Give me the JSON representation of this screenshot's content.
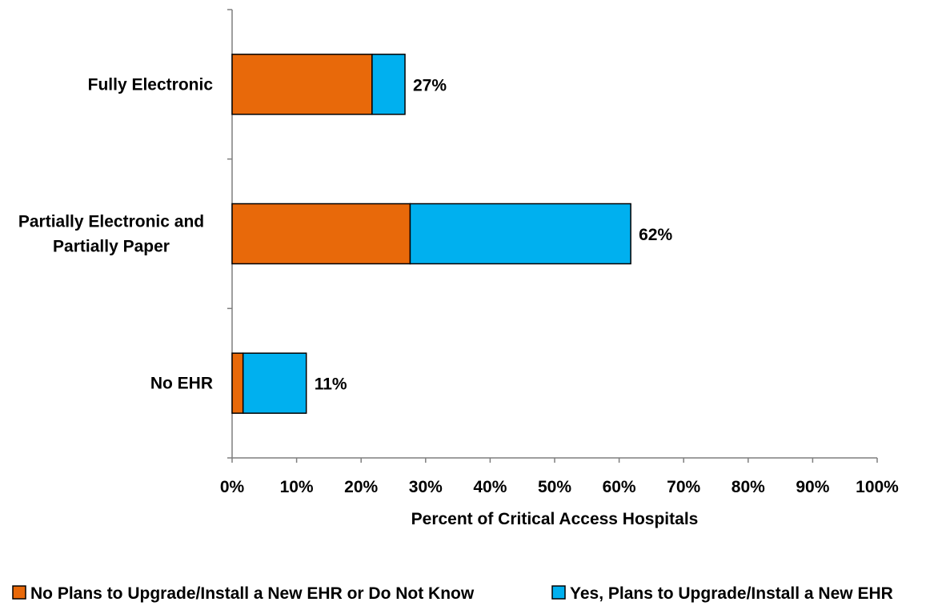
{
  "chart_data": {
    "type": "bar",
    "orientation": "horizontal",
    "stacked": true,
    "categories": [
      [
        "Fully Electronic"
      ],
      [
        "Partially Electronic and",
        "Partially Paper"
      ],
      [
        "No EHR"
      ]
    ],
    "series": [
      {
        "name": "No Plans to Upgrade/Install a New EHR or Do Not Know",
        "color": "#E8690A",
        "values": [
          21.7,
          27.6,
          1.7
        ]
      },
      {
        "name": "Yes, Plans to Upgrade/Install a New EHR",
        "color": "#00B0EF",
        "values": [
          5.1,
          34.2,
          9.8
        ]
      }
    ],
    "totals_labels": [
      "27%",
      "62%",
      "11%"
    ],
    "xlabel": "Percent of Critical Access Hospitals",
    "ylabel": "",
    "xlim": [
      0,
      100
    ],
    "xticks": [
      0,
      10,
      20,
      30,
      40,
      50,
      60,
      70,
      80,
      90,
      100
    ],
    "xtick_labels": [
      "0%",
      "10%",
      "20%",
      "30%",
      "40%",
      "50%",
      "60%",
      "70%",
      "80%",
      "90%",
      "100%"
    ],
    "grid": false,
    "legend_position": "bottom"
  }
}
